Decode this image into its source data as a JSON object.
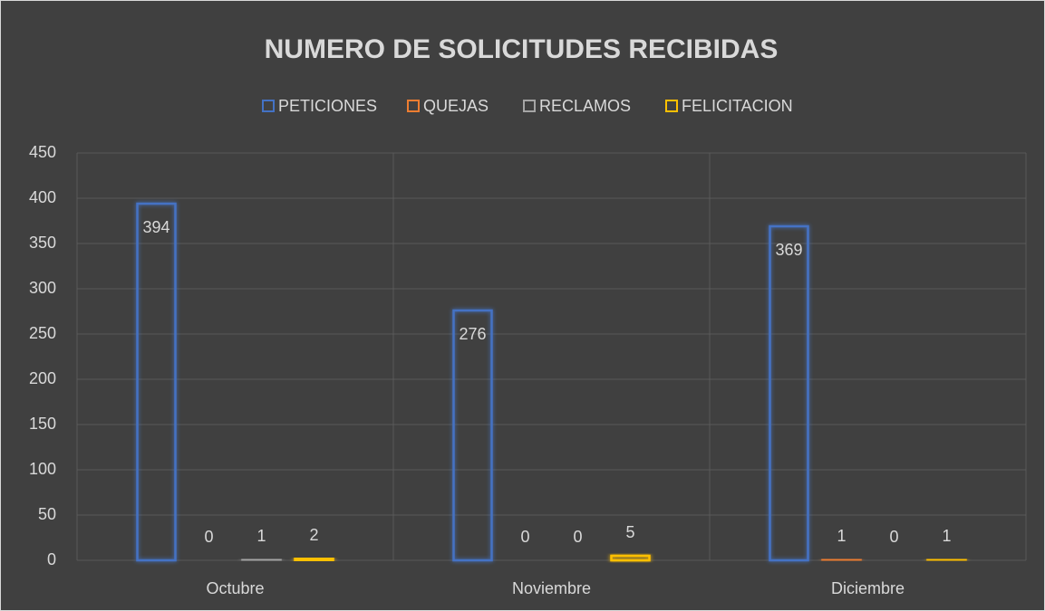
{
  "chart_data": {
    "type": "bar",
    "title": "NUMERO DE SOLICITUDES RECIBIDAS",
    "categories": [
      "Octubre",
      "Noviembre",
      "Diciembre"
    ],
    "series": [
      {
        "name": "PETICIONES",
        "color": "#4472c4",
        "values": [
          394,
          276,
          369
        ]
      },
      {
        "name": "QUEJAS",
        "color": "#ed7d31",
        "values": [
          0,
          0,
          1
        ]
      },
      {
        "name": "RECLAMOS",
        "color": "#a5a5a5",
        "values": [
          1,
          0,
          0
        ]
      },
      {
        "name": "FELICITACION",
        "color": "#ffc000",
        "values": [
          2,
          5,
          1
        ]
      }
    ],
    "ylim": [
      0,
      450
    ],
    "yticks": [
      0,
      50,
      100,
      150,
      200,
      250,
      300,
      350,
      400,
      450
    ],
    "grid": true,
    "legend": "top"
  }
}
